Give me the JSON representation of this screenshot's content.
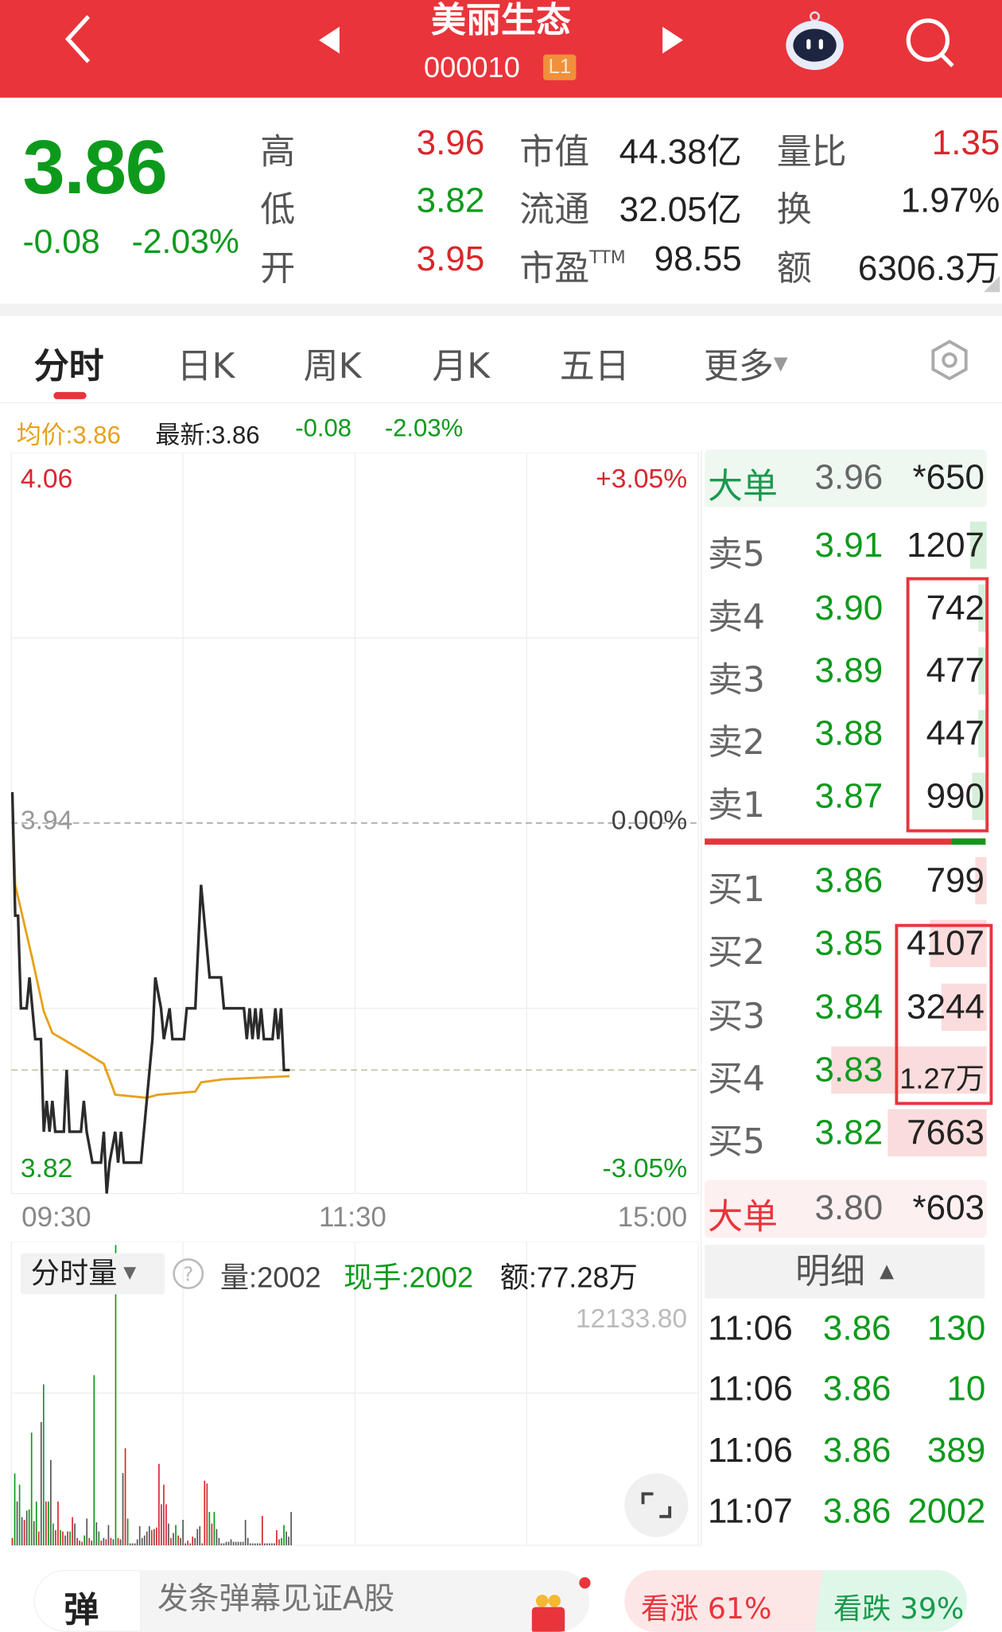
{
  "header": {
    "title": "美丽生态",
    "code": "000010",
    "level_badge": "L1"
  },
  "quote": {
    "price": "3.86",
    "change": "-0.08",
    "change_pct": "-2.03%",
    "rows": [
      {
        "l1": "高",
        "v1": "3.96",
        "l2": "市值",
        "v2": "44.38亿",
        "l3": "量比",
        "v3": "1.35"
      },
      {
        "l1": "低",
        "v1": "3.82",
        "l2": "流通",
        "v2": "32.05亿",
        "l3": "换",
        "v3": "1.97%"
      },
      {
        "l1": "开",
        "v1": "3.95",
        "l2": "市盈",
        "l2_sup": "TTM",
        "v2": "98.55",
        "l3": "额",
        "v3": "6306.3万"
      }
    ]
  },
  "tabs": [
    "分时",
    "日K",
    "周K",
    "月K",
    "五日",
    "更多"
  ],
  "info": {
    "avg": "均价:3.86",
    "latest": "最新:3.86",
    "change": "-0.08",
    "change_pct": "-2.03%"
  },
  "chart_data": {
    "type": "line",
    "y_left_ticks": [
      "4.06",
      "3.94",
      "3.82"
    ],
    "y_right_ticks": [
      "+3.05%",
      "0.00%",
      "-3.05%"
    ],
    "x_ticks": [
      "09:30",
      "11:30",
      "15:00"
    ],
    "ylim": [
      3.82,
      4.06
    ],
    "prev_close": 3.94,
    "price_series": [
      [
        0,
        3.95
      ],
      [
        1,
        3.91
      ],
      [
        2,
        3.91
      ],
      [
        3,
        3.88
      ],
      [
        5,
        3.88
      ],
      [
        6,
        3.89
      ],
      [
        8,
        3.87
      ],
      [
        10,
        3.87
      ],
      [
        11,
        3.84
      ],
      [
        12,
        3.85
      ],
      [
        13,
        3.84
      ],
      [
        14,
        3.85
      ],
      [
        15,
        3.84
      ],
      [
        18,
        3.84
      ],
      [
        19,
        3.86
      ],
      [
        20,
        3.84
      ],
      [
        24,
        3.84
      ],
      [
        25,
        3.85
      ],
      [
        26,
        3.84
      ],
      [
        28,
        3.83
      ],
      [
        31,
        3.83
      ],
      [
        32,
        3.84
      ],
      [
        33,
        3.82
      ],
      [
        34,
        3.83
      ],
      [
        36,
        3.84
      ],
      [
        37,
        3.83
      ],
      [
        38,
        3.84
      ],
      [
        39,
        3.83
      ],
      [
        45,
        3.83
      ],
      [
        46,
        3.84
      ],
      [
        49,
        3.87
      ],
      [
        50,
        3.89
      ],
      [
        52,
        3.88
      ],
      [
        53,
        3.87
      ],
      [
        55,
        3.88
      ],
      [
        56,
        3.87
      ],
      [
        60,
        3.87
      ],
      [
        61,
        3.88
      ],
      [
        64,
        3.88
      ],
      [
        66,
        3.92
      ],
      [
        69,
        3.89
      ],
      [
        73,
        3.89
      ],
      [
        74,
        3.88
      ],
      [
        81,
        3.88
      ],
      [
        82,
        3.87
      ],
      [
        83,
        3.88
      ],
      [
        84,
        3.87
      ],
      [
        85,
        3.88
      ],
      [
        86,
        3.87
      ],
      [
        87,
        3.88
      ],
      [
        88,
        3.87
      ],
      [
        91,
        3.87
      ],
      [
        92,
        3.88
      ],
      [
        93,
        3.87
      ],
      [
        94,
        3.88
      ],
      [
        95,
        3.86
      ],
      [
        97,
        3.86
      ]
    ],
    "avg_series": [
      [
        0,
        3.95
      ],
      [
        1,
        3.92
      ],
      [
        7,
        3.896
      ],
      [
        11,
        3.879
      ],
      [
        14,
        3.872
      ],
      [
        25,
        3.866
      ],
      [
        32,
        3.862
      ],
      [
        36,
        3.852
      ],
      [
        47,
        3.851
      ],
      [
        51,
        3.852
      ],
      [
        64,
        3.853
      ],
      [
        66,
        3.856
      ],
      [
        74,
        3.857
      ],
      [
        97,
        3.858
      ]
    ],
    "colors": {
      "price": "#2b2b2b",
      "avg": "#e6a11a",
      "up": "#d9262c",
      "down": "#0d9a1c"
    }
  },
  "volume": {
    "selector": "分时量",
    "vol": "量:2002",
    "hand": "现手:2002",
    "amount": "额:77.28万",
    "axis_max": "12133.80",
    "max": 12133.8,
    "bars": [
      [
        300,
        "r"
      ],
      [
        2900,
        "g"
      ],
      [
        1770,
        "k"
      ],
      [
        2450,
        "g"
      ],
      [
        1140,
        "k"
      ],
      [
        1030,
        "r"
      ],
      [
        1400,
        "k"
      ],
      [
        1450,
        "g"
      ],
      [
        4550,
        "g"
      ],
      [
        980,
        "k"
      ],
      [
        1770,
        "g"
      ],
      [
        560,
        "r"
      ],
      [
        4980,
        "k"
      ],
      [
        6500,
        "g"
      ],
      [
        1770,
        "r"
      ],
      [
        1770,
        "g"
      ],
      [
        3450,
        "k"
      ],
      [
        880,
        "g"
      ],
      [
        610,
        "r"
      ],
      [
        1770,
        "r"
      ],
      [
        610,
        "g"
      ],
      [
        560,
        "r"
      ],
      [
        400,
        "k"
      ],
      [
        560,
        "r"
      ],
      [
        560,
        "g"
      ],
      [
        1140,
        "r"
      ],
      [
        880,
        "k"
      ],
      [
        300,
        "r"
      ],
      [
        190,
        "k"
      ],
      [
        140,
        "r"
      ],
      [
        400,
        "g"
      ],
      [
        1080,
        "k"
      ],
      [
        300,
        "r"
      ],
      [
        190,
        "k"
      ],
      [
        6870,
        "g"
      ],
      [
        930,
        "k"
      ],
      [
        560,
        "g"
      ],
      [
        190,
        "r"
      ],
      [
        300,
        "k"
      ],
      [
        240,
        "r"
      ],
      [
        820,
        "k"
      ],
      [
        300,
        "r"
      ],
      [
        240,
        "k"
      ],
      [
        12133,
        "g"
      ],
      [
        300,
        "r"
      ],
      [
        240,
        "k"
      ],
      [
        2920,
        "k"
      ],
      [
        3920,
        "r"
      ],
      [
        1080,
        "g"
      ],
      [
        80,
        "k"
      ],
      [
        80,
        "k"
      ],
      [
        80,
        "k"
      ],
      [
        240,
        "k"
      ],
      [
        770,
        "k"
      ],
      [
        300,
        "k"
      ],
      [
        400,
        "k"
      ],
      [
        560,
        "k"
      ],
      [
        770,
        "k"
      ],
      [
        610,
        "r"
      ],
      [
        660,
        "k"
      ],
      [
        720,
        "r"
      ],
      [
        3290,
        "r"
      ],
      [
        1660,
        "r"
      ],
      [
        2450,
        "r"
      ],
      [
        1660,
        "r"
      ],
      [
        880,
        "k"
      ],
      [
        300,
        "r"
      ],
      [
        500,
        "k"
      ],
      [
        820,
        "g"
      ],
      [
        400,
        "r"
      ],
      [
        300,
        "k"
      ],
      [
        1030,
        "k"
      ],
      [
        80,
        "k"
      ],
      [
        190,
        "r"
      ],
      [
        80,
        "k"
      ],
      [
        350,
        "r"
      ],
      [
        300,
        "k"
      ],
      [
        660,
        "k"
      ],
      [
        770,
        "k"
      ],
      [
        80,
        "k"
      ],
      [
        2610,
        "r"
      ],
      [
        2500,
        "r"
      ],
      [
        1350,
        "g"
      ],
      [
        880,
        "r"
      ],
      [
        1350,
        "g"
      ],
      [
        660,
        "k"
      ],
      [
        300,
        "k"
      ],
      [
        80,
        "k"
      ],
      [
        80,
        "k"
      ],
      [
        140,
        "k"
      ],
      [
        140,
        "k"
      ],
      [
        240,
        "k"
      ],
      [
        140,
        "k"
      ],
      [
        140,
        "k"
      ],
      [
        140,
        "k"
      ],
      [
        140,
        "k"
      ],
      [
        140,
        "k"
      ],
      [
        1030,
        "k"
      ],
      [
        300,
        "k"
      ],
      [
        80,
        "k"
      ],
      [
        80,
        "k"
      ],
      [
        80,
        "k"
      ],
      [
        80,
        "k"
      ],
      [
        80,
        "k"
      ],
      [
        1190,
        "r"
      ],
      [
        80,
        "k"
      ],
      [
        80,
        "k"
      ],
      [
        80,
        "k"
      ],
      [
        80,
        "k"
      ],
      [
        80,
        "k"
      ],
      [
        610,
        "r"
      ],
      [
        240,
        "r"
      ],
      [
        300,
        "g"
      ],
      [
        820,
        "g"
      ],
      [
        560,
        "k"
      ],
      [
        350,
        "k"
      ],
      [
        1350,
        "k"
      ]
    ]
  },
  "orderbook": {
    "big_sell": {
      "label": "大单",
      "price": "3.96",
      "vol": "*650"
    },
    "asks": [
      {
        "label": "卖5",
        "price": "3.91",
        "vol": "1207",
        "depth": 0.06
      },
      {
        "label": "卖4",
        "price": "3.90",
        "vol": "742",
        "depth": 0.03
      },
      {
        "label": "卖3",
        "price": "3.89",
        "vol": "477",
        "depth": 0.02
      },
      {
        "label": "卖2",
        "price": "3.88",
        "vol": "447",
        "depth": 0.02
      },
      {
        "label": "卖1",
        "price": "3.87",
        "vol": "990",
        "depth": 0.05
      }
    ],
    "bids": [
      {
        "label": "买1",
        "price": "3.86",
        "vol": "799",
        "depth": 0.04
      },
      {
        "label": "买2",
        "price": "3.85",
        "vol": "4107",
        "depth": 0.2
      },
      {
        "label": "买3",
        "price": "3.84",
        "vol": "3244",
        "depth": 0.16
      },
      {
        "label": "买4",
        "price": "3.83",
        "vol": "1.27万",
        "depth": 0.55
      },
      {
        "label": "买5",
        "price": "3.82",
        "vol": "7663",
        "depth": 0.35
      }
    ],
    "big_buy": {
      "label": "大单",
      "price": "3.80",
      "vol": "*603"
    },
    "sell_buy_ratio_bar": 0.88
  },
  "trades": {
    "header": "明细",
    "rows": [
      {
        "time": "11:06",
        "price": "3.86",
        "vol": "130"
      },
      {
        "time": "11:06",
        "price": "3.86",
        "vol": "10"
      },
      {
        "time": "11:06",
        "price": "3.86",
        "vol": "389"
      },
      {
        "time": "11:07",
        "price": "3.86",
        "vol": "2002"
      }
    ]
  },
  "bottom": {
    "danmu_button": "弹",
    "danmu_placeholder": "发条弹幕见证A股",
    "bull": "看涨 61%",
    "bear": "看跌 39%",
    "bull_pct": 61
  }
}
